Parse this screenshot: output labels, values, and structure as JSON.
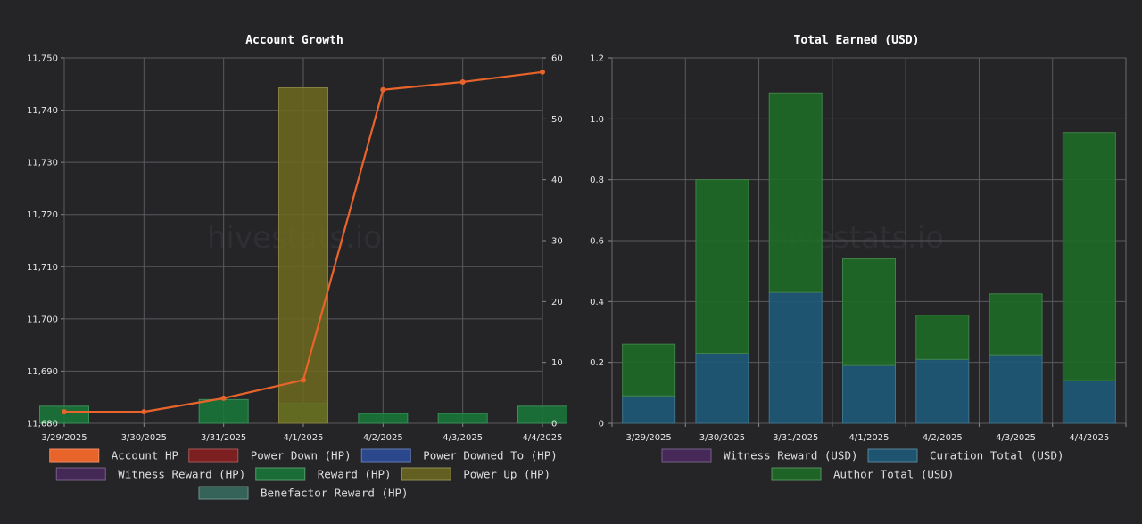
{
  "watermark": "hivestats.io",
  "chart_data": [
    {
      "type": "bar",
      "title": "Account Growth",
      "categories": [
        "3/29/2025",
        "3/30/2025",
        "3/31/2025",
        "4/1/2025",
        "4/2/2025",
        "4/3/2025",
        "4/4/2025"
      ],
      "y_left": {
        "min": 11680,
        "max": 11750,
        "ticks": [
          "11,680",
          "11,690",
          "11,700",
          "11,710",
          "11,720",
          "11,730",
          "11,740",
          "11,750"
        ]
      },
      "y_right": {
        "min": 0,
        "max": 60,
        "ticks": [
          "0",
          "10",
          "20",
          "30",
          "40",
          "50",
          "60"
        ]
      },
      "series": [
        {
          "name": "Account HP",
          "type": "line",
          "axis": "left",
          "color": "#e8642a",
          "values": [
            11682.2,
            11682.2,
            11684.8,
            11688.3,
            11743.9,
            11745.4,
            11747.3
          ]
        },
        {
          "name": "Power Down (HP)",
          "type": "bar",
          "axis": "right",
          "color": "#8b1e1e",
          "values": [
            0,
            0,
            0,
            0,
            0,
            0,
            0
          ]
        },
        {
          "name": "Power Downed To (HP)",
          "type": "bar",
          "axis": "right",
          "color": "#2d4f9e",
          "values": [
            0,
            0,
            0,
            0,
            0,
            0,
            0
          ]
        },
        {
          "name": "Witness Reward (HP)",
          "type": "bar",
          "axis": "right",
          "color": "#4a2a5e",
          "values": [
            0,
            0,
            0,
            0,
            0,
            0,
            0
          ]
        },
        {
          "name": "Reward (HP)",
          "type": "bar",
          "axis": "right",
          "color": "#1a7a3a",
          "values": [
            2.8,
            0,
            3.9,
            3.3,
            1.6,
            1.6,
            2.8
          ]
        },
        {
          "name": "Power Up (HP)",
          "type": "bar",
          "axis": "right",
          "color": "#6f6a1e",
          "values": [
            0,
            0,
            0,
            55.1,
            0,
            0,
            0
          ]
        },
        {
          "name": "Benefactor Reward (HP)",
          "type": "bar",
          "axis": "right",
          "color": "#3a6e62",
          "values": [
            0,
            0,
            0,
            0,
            0,
            0,
            0
          ]
        }
      ]
    },
    {
      "type": "bar",
      "stacked": true,
      "title": "Total Earned (USD)",
      "categories": [
        "3/29/2025",
        "3/30/2025",
        "3/31/2025",
        "4/1/2025",
        "4/2/2025",
        "4/3/2025",
        "4/4/2025"
      ],
      "ylim": [
        0,
        1.2
      ],
      "y_ticks": [
        "0",
        "0.2",
        "0.4",
        "0.6",
        "0.8",
        "1.0",
        "1.2"
      ],
      "series": [
        {
          "name": "Witness Reward (USD)",
          "color": "#4a2a5e",
          "values": [
            0,
            0,
            0,
            0,
            0,
            0,
            0
          ]
        },
        {
          "name": "Curation Total (USD)",
          "color": "#1e5a78",
          "values": [
            0.09,
            0.23,
            0.43,
            0.19,
            0.21,
            0.225,
            0.14
          ]
        },
        {
          "name": "Author Total (USD)",
          "color": "#1e6b26",
          "values": [
            0.17,
            0.57,
            0.655,
            0.35,
            0.145,
            0.2,
            0.815
          ]
        }
      ]
    }
  ]
}
